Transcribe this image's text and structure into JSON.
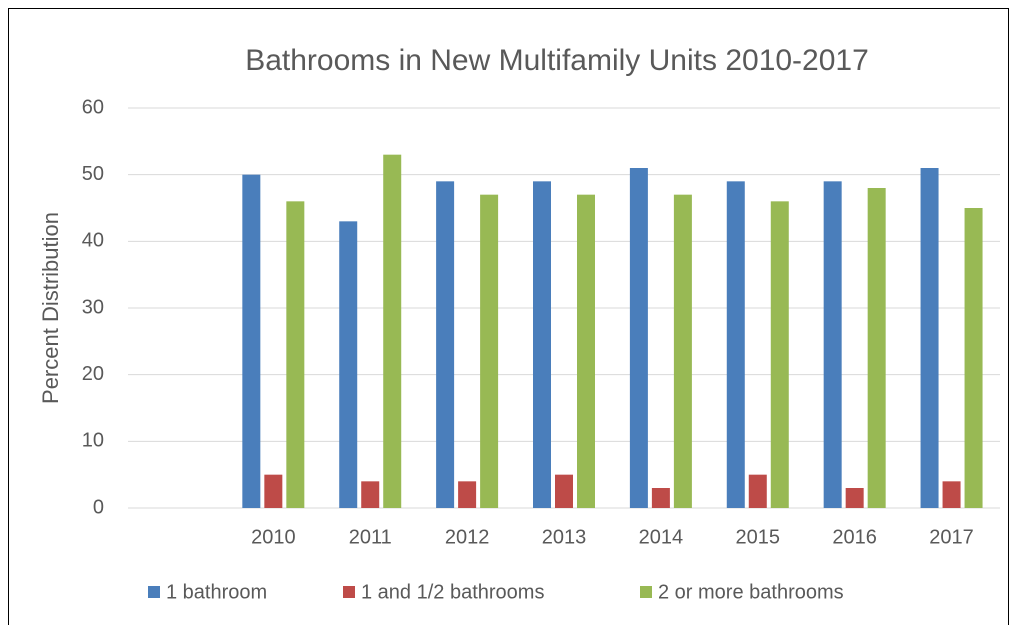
{
  "chart_data": {
    "type": "bar",
    "title": "Bathrooms in New Multifamily Units 2010-2017",
    "y_label": "Percent Distribution",
    "categories": [
      null,
      "2010",
      "2011",
      "2012",
      "2013",
      "2014",
      "2015",
      "2016",
      "2017"
    ],
    "series": [
      {
        "name": "1 bathroom",
        "color": "#4a7ebb",
        "values": [
          null,
          50,
          43,
          49,
          49,
          51,
          49,
          49,
          51
        ]
      },
      {
        "name": "1 and 1/2 bathrooms",
        "color": "#be4b48",
        "values": [
          null,
          5,
          4,
          4,
          5,
          3,
          5,
          3,
          4
        ]
      },
      {
        "name": "2 or more bathrooms",
        "color": "#98b954",
        "values": [
          null,
          46,
          53,
          47,
          47,
          47,
          46,
          48,
          45
        ]
      }
    ],
    "ylim": [
      0,
      60
    ],
    "yticks": [
      0,
      10,
      20,
      30,
      40,
      50,
      60
    ],
    "grid": true,
    "legend": "bottom"
  }
}
